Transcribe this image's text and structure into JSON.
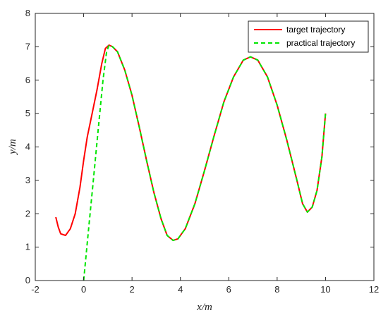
{
  "chart_data": {
    "type": "line",
    "xlabel": "x/m",
    "ylabel": "y/m",
    "xlim": [
      -2,
      12
    ],
    "ylim": [
      0,
      8
    ],
    "xticks": [
      -2,
      0,
      2,
      4,
      6,
      8,
      10,
      12
    ],
    "yticks": [
      0,
      1,
      2,
      3,
      4,
      5,
      6,
      7,
      8
    ],
    "grid": false,
    "legend_position": "top-right",
    "series": [
      {
        "name": "target trajectory",
        "color": "#ff0000",
        "style": "solid",
        "points": [
          [
            -1.15,
            1.9
          ],
          [
            -1.05,
            1.6
          ],
          [
            -0.95,
            1.4
          ],
          [
            -0.75,
            1.35
          ],
          [
            -0.55,
            1.55
          ],
          [
            -0.35,
            2.0
          ],
          [
            -0.15,
            2.8
          ],
          [
            0.0,
            3.6
          ],
          [
            0.15,
            4.3
          ],
          [
            0.35,
            5.0
          ],
          [
            0.55,
            5.7
          ],
          [
            0.75,
            6.5
          ],
          [
            0.9,
            6.95
          ],
          [
            1.05,
            7.05
          ],
          [
            1.2,
            7.0
          ],
          [
            1.4,
            6.85
          ],
          [
            1.7,
            6.3
          ],
          [
            2.0,
            5.55
          ],
          [
            2.3,
            4.6
          ],
          [
            2.6,
            3.6
          ],
          [
            2.9,
            2.65
          ],
          [
            3.2,
            1.85
          ],
          [
            3.45,
            1.35
          ],
          [
            3.7,
            1.2
          ],
          [
            3.9,
            1.25
          ],
          [
            4.2,
            1.55
          ],
          [
            4.6,
            2.3
          ],
          [
            5.0,
            3.3
          ],
          [
            5.4,
            4.35
          ],
          [
            5.8,
            5.35
          ],
          [
            6.2,
            6.1
          ],
          [
            6.6,
            6.6
          ],
          [
            6.9,
            6.7
          ],
          [
            7.2,
            6.6
          ],
          [
            7.6,
            6.1
          ],
          [
            8.0,
            5.25
          ],
          [
            8.4,
            4.2
          ],
          [
            8.8,
            3.05
          ],
          [
            9.05,
            2.3
          ],
          [
            9.25,
            2.05
          ],
          [
            9.45,
            2.2
          ],
          [
            9.65,
            2.7
          ],
          [
            9.85,
            3.7
          ],
          [
            10.0,
            5.0
          ]
        ]
      },
      {
        "name": "practical trajectory",
        "color": "#00e600",
        "style": "dashed",
        "points": [
          [
            0.0,
            0.0
          ],
          [
            0.2,
            1.5
          ],
          [
            0.4,
            3.0
          ],
          [
            0.6,
            4.5
          ],
          [
            0.8,
            6.0
          ],
          [
            0.95,
            6.85
          ],
          [
            1.05,
            7.05
          ],
          [
            1.2,
            7.0
          ],
          [
            1.4,
            6.85
          ],
          [
            1.7,
            6.3
          ],
          [
            2.0,
            5.55
          ],
          [
            2.3,
            4.6
          ],
          [
            2.6,
            3.6
          ],
          [
            2.9,
            2.65
          ],
          [
            3.2,
            1.85
          ],
          [
            3.45,
            1.35
          ],
          [
            3.7,
            1.2
          ],
          [
            3.9,
            1.25
          ],
          [
            4.2,
            1.55
          ],
          [
            4.6,
            2.3
          ],
          [
            5.0,
            3.3
          ],
          [
            5.4,
            4.35
          ],
          [
            5.8,
            5.35
          ],
          [
            6.2,
            6.1
          ],
          [
            6.6,
            6.6
          ],
          [
            6.9,
            6.7
          ],
          [
            7.2,
            6.6
          ],
          [
            7.6,
            6.1
          ],
          [
            8.0,
            5.25
          ],
          [
            8.4,
            4.2
          ],
          [
            8.8,
            3.05
          ],
          [
            9.05,
            2.3
          ],
          [
            9.25,
            2.05
          ],
          [
            9.45,
            2.2
          ],
          [
            9.65,
            2.7
          ],
          [
            9.85,
            3.7
          ],
          [
            10.0,
            5.0
          ]
        ]
      }
    ]
  }
}
